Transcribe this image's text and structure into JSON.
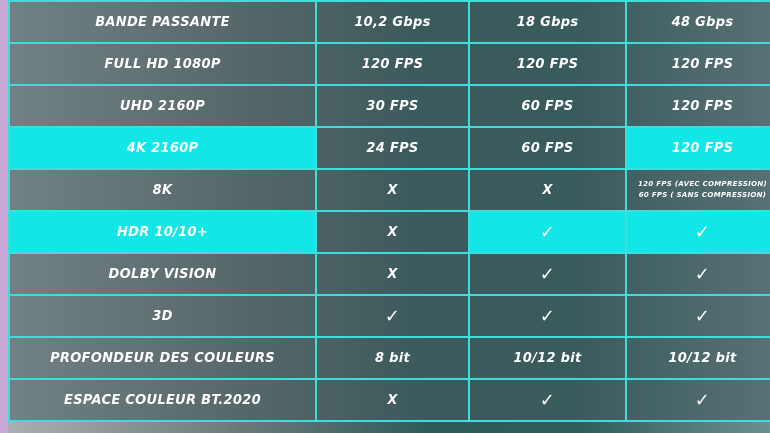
{
  "accent_color": "#12e6e6",
  "rows": [
    {
      "label": "BANDE PASSANTE",
      "c1": "10,2 Gbps",
      "c2": "18 Gbps",
      "c3": "48 Gbps"
    },
    {
      "label": "FULL HD 1080P",
      "c1": "120 FPS",
      "c2": "120 FPS",
      "c3": "120 FPS"
    },
    {
      "label": "UHD 2160P",
      "c1": "30 FPS",
      "c2": "60 FPS",
      "c3": "120 FPS"
    },
    {
      "label": "4K 2160P",
      "c1": "24 FPS",
      "c2": "60 FPS",
      "c3": "120 FPS"
    },
    {
      "label": "8K",
      "c1": "X",
      "c2": "X",
      "c3a": "120 FPS (AVEC COMPRESSION)",
      "c3b": "60 FPS ( SANS COMPRESSION)"
    },
    {
      "label": "HDR 10/10+",
      "c1": "X",
      "c2": "✓",
      "c3": "✓"
    },
    {
      "label": "DOLBY VISION",
      "c1": "X",
      "c2": "✓",
      "c3": "✓"
    },
    {
      "label": "3D",
      "c1": "✓",
      "c2": "✓",
      "c3": "✓"
    },
    {
      "label": "PROFONDEUR DES COULEURS",
      "c1": "8 bit",
      "c2": "10/12 bit",
      "c3": "10/12 bit"
    },
    {
      "label": "ESPACE COULEUR BT.2020",
      "c1": "X",
      "c2": "✓",
      "c3": "✓"
    }
  ]
}
